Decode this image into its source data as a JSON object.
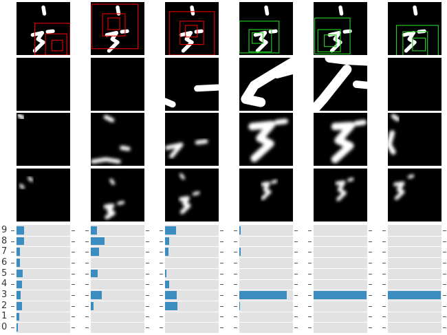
{
  "digit_labels": [
    "9",
    "8",
    "7",
    "6",
    "5",
    "4",
    "3",
    "2",
    "1",
    "0"
  ],
  "colors": {
    "reject_box": "#e00000",
    "accept_box": "#22cc22",
    "bar": "#3a8cc1",
    "panel_bg": "#e2e2e2"
  },
  "glimpse_steps": [
    {
      "box_state": "reject",
      "probs": {
        "9": 0.14,
        "8": 0.14,
        "7": 0.07,
        "6": 0.06,
        "5": 0.11,
        "4": 0.1,
        "3": 0.08,
        "2": 0.1,
        "1": 0.05,
        "0": 0.02
      }
    },
    {
      "box_state": "reject",
      "probs": {
        "9": 0.12,
        "8": 0.26,
        "7": 0.15,
        "6": 0.0,
        "5": 0.13,
        "4": 0.0,
        "3": 0.21,
        "2": 0.05,
        "1": 0.0,
        "0": 0.0
      }
    },
    {
      "box_state": "reject",
      "probs": {
        "9": 0.21,
        "8": 0.08,
        "7": 0.07,
        "6": 0.0,
        "5": 0.02,
        "4": 0.08,
        "3": 0.22,
        "2": 0.23,
        "1": 0.0,
        "0": 0.0
      }
    },
    {
      "box_state": "accept",
      "probs": {
        "9": 0.03,
        "8": 0.0,
        "7": 0.03,
        "6": 0.0,
        "5": 0.0,
        "4": 0.0,
        "3": 0.89,
        "2": 0.01,
        "1": 0.0,
        "0": 0.0
      }
    },
    {
      "box_state": "accept",
      "probs": {
        "9": 0.0,
        "8": 0.0,
        "7": 0.0,
        "6": 0.0,
        "5": 0.0,
        "4": 0.0,
        "3": 0.99,
        "2": 0.0,
        "1": 0.0,
        "0": 0.0
      }
    },
    {
      "box_state": "accept",
      "probs": {
        "9": 0.0,
        "8": 0.0,
        "7": 0.0,
        "6": 0.0,
        "5": 0.0,
        "4": 0.0,
        "3": 0.99,
        "2": 0.0,
        "1": 0.0,
        "0": 0.0
      }
    }
  ]
}
